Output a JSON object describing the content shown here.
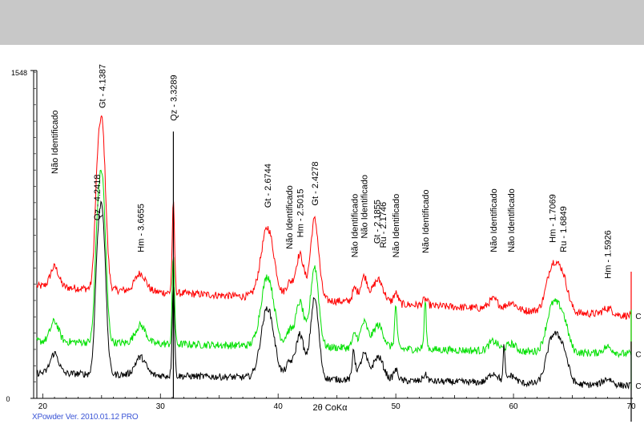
{
  "footer": "XPowder Ver. 2010.01.12 PRO",
  "chart_data": {
    "type": "line",
    "title": "",
    "xlabel": "2θ CoKα",
    "ylabel": "",
    "xlim": [
      19.5,
      70
    ],
    "ylim": [
      0,
      1548
    ],
    "x_ticks": [
      20,
      30,
      40,
      50,
      60,
      70
    ],
    "y_ticks": [
      0,
      1548
    ],
    "grid": false,
    "colors": {
      "background_band": "#c8c8c8",
      "plot_bg": "#ffffff",
      "series_red": "#ff0000",
      "series_green": "#00e000",
      "series_black": "#000000",
      "annotation_line": "#000000"
    },
    "peaks": [
      {
        "x": 21.0,
        "h": 95,
        "w": 0.35
      },
      {
        "x": 24.6,
        "h": 330,
        "w": 0.22
      },
      {
        "x": 25.05,
        "h": 760,
        "w": 0.3
      },
      {
        "x": 28.3,
        "h": 85,
        "w": 0.45
      },
      {
        "x": 31.1,
        "h": 420,
        "w": 0.1
      },
      {
        "x": 39.1,
        "h": 330,
        "w": 0.55
      },
      {
        "x": 40.95,
        "h": 70,
        "w": 0.3
      },
      {
        "x": 41.85,
        "h": 210,
        "w": 0.35
      },
      {
        "x": 43.1,
        "h": 380,
        "w": 0.35
      },
      {
        "x": 46.5,
        "h": 60,
        "w": 0.2
      },
      {
        "x": 47.3,
        "h": 120,
        "w": 0.3
      },
      {
        "x": 48.5,
        "h": 110,
        "w": 0.45
      },
      {
        "x": 50.0,
        "h": 50,
        "w": 0.2
      },
      {
        "x": 52.5,
        "h": 30,
        "w": 0.2
      },
      {
        "x": 58.3,
        "h": 45,
        "w": 0.4
      },
      {
        "x": 59.8,
        "h": 35,
        "w": 0.4
      },
      {
        "x": 63.3,
        "h": 210,
        "w": 0.5
      },
      {
        "x": 64.2,
        "h": 150,
        "w": 0.45
      },
      {
        "x": 68.0,
        "h": 30,
        "w": 0.4
      }
    ],
    "series": [
      {
        "name": "C",
        "color": "#ff0000",
        "baseline": 530,
        "noise": 18,
        "extra_peaks": [],
        "slope": -140
      },
      {
        "name": "C",
        "color": "#00e000",
        "baseline": 270,
        "noise": 18,
        "extra_peaks": [
          {
            "x": 50.0,
            "h": 160,
            "w": 0.08
          },
          {
            "x": 52.5,
            "h": 200,
            "w": 0.08
          }
        ],
        "slope": -60
      },
      {
        "name": "C",
        "color": "#000000",
        "baseline": 120,
        "noise": 16,
        "extra_peaks": [
          {
            "x": 59.2,
            "h": 170,
            "w": 0.07
          },
          {
            "x": 46.4,
            "h": 100,
            "w": 0.08
          }
        ],
        "slope": -60
      }
    ],
    "annotation_lines": [
      {
        "x": 31.1,
        "y_top": 1260
      }
    ],
    "annotations": [
      {
        "text": "Não Identificado",
        "x": 21.0,
        "y": 1060
      },
      {
        "text": "Qz - 4.2418",
        "x": 24.6,
        "y": 840
      },
      {
        "text": "Gt - 4.1387",
        "x": 25.05,
        "y": 1370
      },
      {
        "text": "Hm - 3.6655",
        "x": 28.3,
        "y": 690
      },
      {
        "text": "Qz - 3.3289",
        "x": 31.1,
        "y": 1310
      },
      {
        "text": "Gt - 2.6744",
        "x": 39.1,
        "y": 900
      },
      {
        "text": "Não Identificado",
        "x": 40.95,
        "y": 705
      },
      {
        "text": "Hm - 2.5015",
        "x": 41.85,
        "y": 760
      },
      {
        "text": "Gt - 2.4278",
        "x": 43.1,
        "y": 910
      },
      {
        "text": "Não Identificado",
        "x": 46.5,
        "y": 665
      },
      {
        "text": "Não Identificado",
        "x": 47.3,
        "y": 755
      },
      {
        "text": "Gt - 2.1855",
        "x": 48.4,
        "y": 730
      },
      {
        "text": "Ru - 2.1746",
        "x": 48.9,
        "y": 710
      },
      {
        "text": "Não Identificado",
        "x": 50.0,
        "y": 665
      },
      {
        "text": "Não Identificado",
        "x": 52.5,
        "y": 685
      },
      {
        "text": "Não Identificado",
        "x": 58.3,
        "y": 690
      },
      {
        "text": "Não Identificado",
        "x": 59.8,
        "y": 690
      },
      {
        "text": "Hm - 1.7069",
        "x": 63.3,
        "y": 735
      },
      {
        "text": "Ru - 1.6849",
        "x": 64.2,
        "y": 690
      },
      {
        "text": "Hm - 1.5926",
        "x": 68.0,
        "y": 565
      }
    ]
  }
}
